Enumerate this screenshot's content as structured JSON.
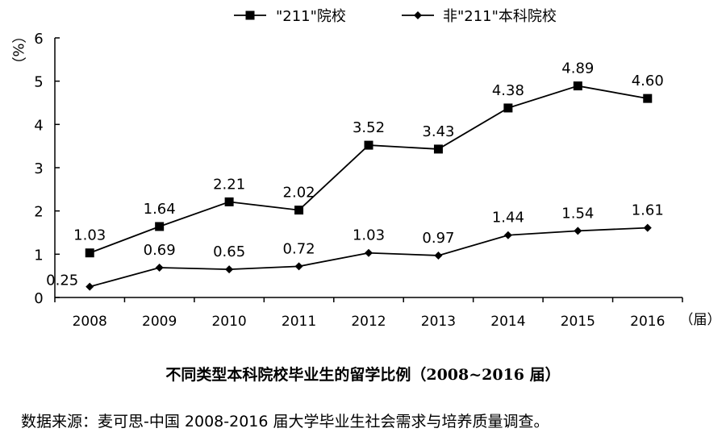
{
  "chart_data": {
    "type": "line",
    "title": "不同类型本科院校毕业生的留学比例（2008~2016 届）",
    "source": "数据来源：麦可思-中国 2008-2016 届大学毕业生社会需求与培养质量调查。",
    "ylabel": "（%）",
    "xlabel": "（届）",
    "ylim": [
      0,
      6
    ],
    "yticks": [
      "0",
      "1",
      "2",
      "3",
      "4",
      "5",
      "6"
    ],
    "categories": [
      "2008",
      "2009",
      "2010",
      "2011",
      "2012",
      "2013",
      "2014",
      "2015",
      "2016"
    ],
    "legend_position": "top",
    "grid": false,
    "series": [
      {
        "name": "\"211\"院校",
        "marker": "square",
        "values": [
          1.03,
          1.64,
          2.21,
          2.02,
          3.52,
          3.43,
          4.38,
          4.89,
          4.6
        ],
        "labels": [
          "1.03",
          "1.64",
          "2.21",
          "2.02",
          "3.52",
          "3.43",
          "4.38",
          "4.89",
          "4.60"
        ]
      },
      {
        "name": "非\"211\"本科院校",
        "marker": "diamond",
        "values": [
          0.25,
          0.69,
          0.65,
          0.72,
          1.03,
          0.97,
          1.44,
          1.54,
          1.61
        ],
        "labels": [
          "0.25",
          "0.69",
          "0.65",
          "0.72",
          "1.03",
          "0.97",
          "1.44",
          "1.54",
          "1.61"
        ]
      }
    ]
  }
}
